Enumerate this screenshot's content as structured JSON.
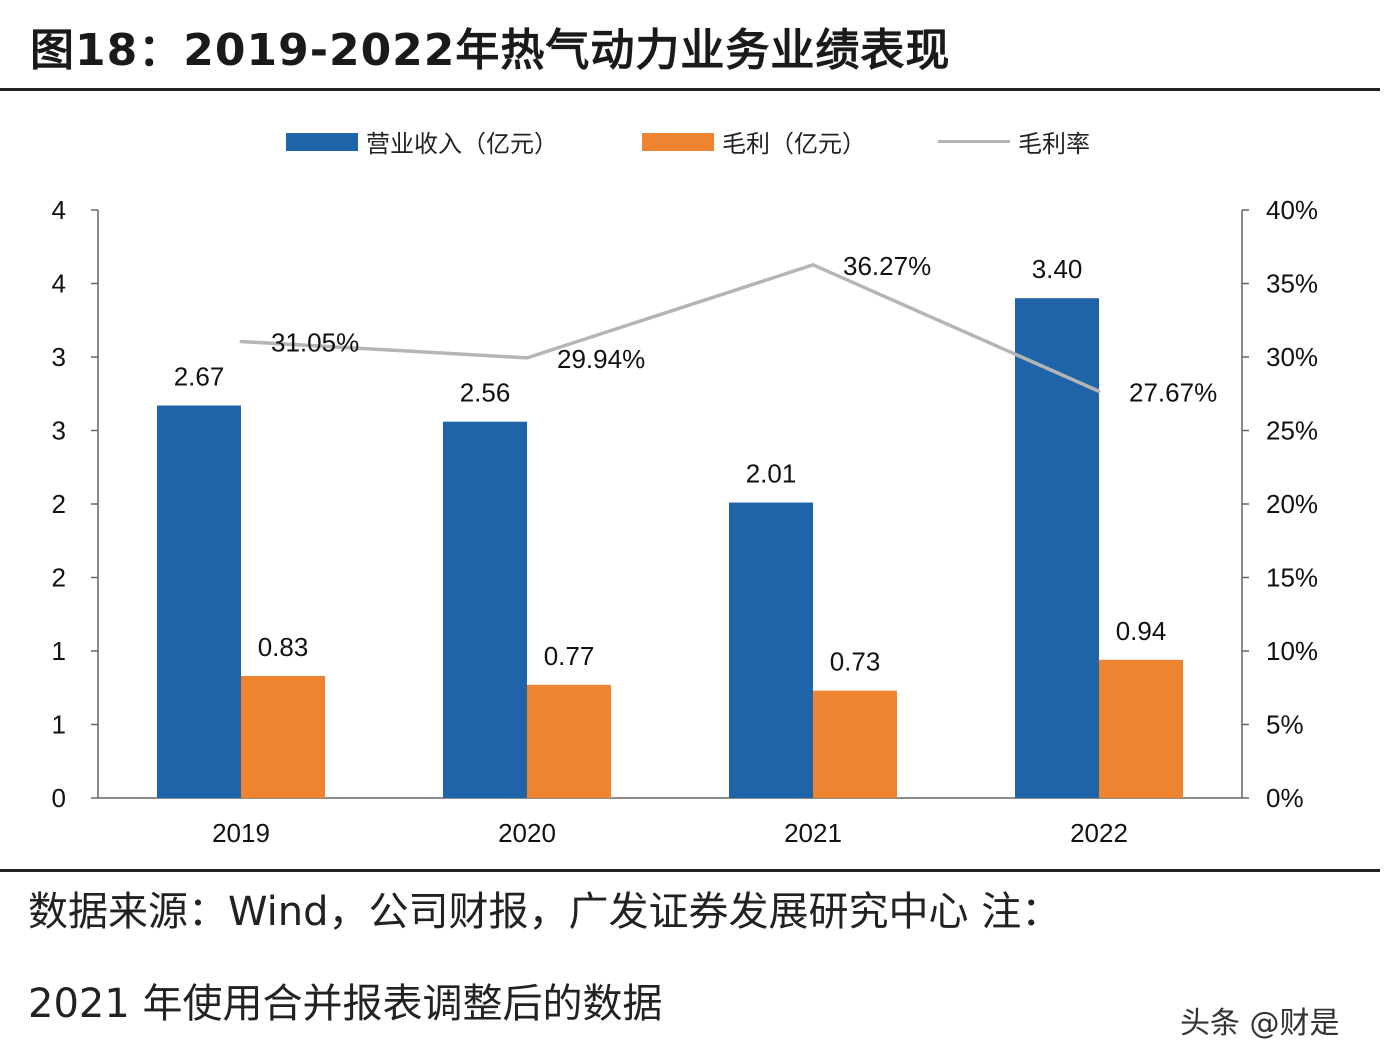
{
  "title": "图18：2019-2022年热气动力业务业绩表现",
  "legend": {
    "revenue": "营业收入（亿元）",
    "gross_profit": "毛利（亿元）",
    "margin": "毛利率"
  },
  "source_line1": "数据来源：Wind，公司财报，广发证券发展研究中心  注：",
  "source_line2": "2021 年使用合并报表调整后的数据",
  "watermark": "头条 @财是",
  "colors": {
    "revenue": "#1f64a8",
    "gross_profit": "#ee8430",
    "margin": "#b5b5b5"
  },
  "chart_data": {
    "type": "bar",
    "categories": [
      "2019",
      "2020",
      "2021",
      "2022"
    ],
    "series": [
      {
        "name": "营业收入（亿元）",
        "type": "bar",
        "axis": "left",
        "values": [
          2.67,
          2.56,
          2.01,
          3.4
        ],
        "labels": [
          "2.67",
          "2.56",
          "2.01",
          "3.40"
        ]
      },
      {
        "name": "毛利（亿元）",
        "type": "bar",
        "axis": "left",
        "values": [
          0.83,
          0.77,
          0.73,
          0.94
        ],
        "labels": [
          "0.83",
          "0.77",
          "0.73",
          "0.94"
        ]
      },
      {
        "name": "毛利率",
        "type": "line",
        "axis": "right",
        "values": [
          31.05,
          29.94,
          36.27,
          27.67
        ],
        "labels": [
          "31.05%",
          "29.94%",
          "36.27%",
          "27.67%"
        ]
      }
    ],
    "left_axis": {
      "ylim": [
        0,
        4
      ],
      "tick_labels": [
        "0",
        "1",
        "1",
        "2",
        "2",
        "3",
        "3",
        "4",
        "4"
      ]
    },
    "right_axis": {
      "ylim": [
        0,
        40
      ],
      "tick_labels": [
        "0%",
        "5%",
        "10%",
        "15%",
        "20%",
        "25%",
        "30%",
        "35%",
        "40%"
      ]
    },
    "legend_position": "top",
    "grid": false
  }
}
